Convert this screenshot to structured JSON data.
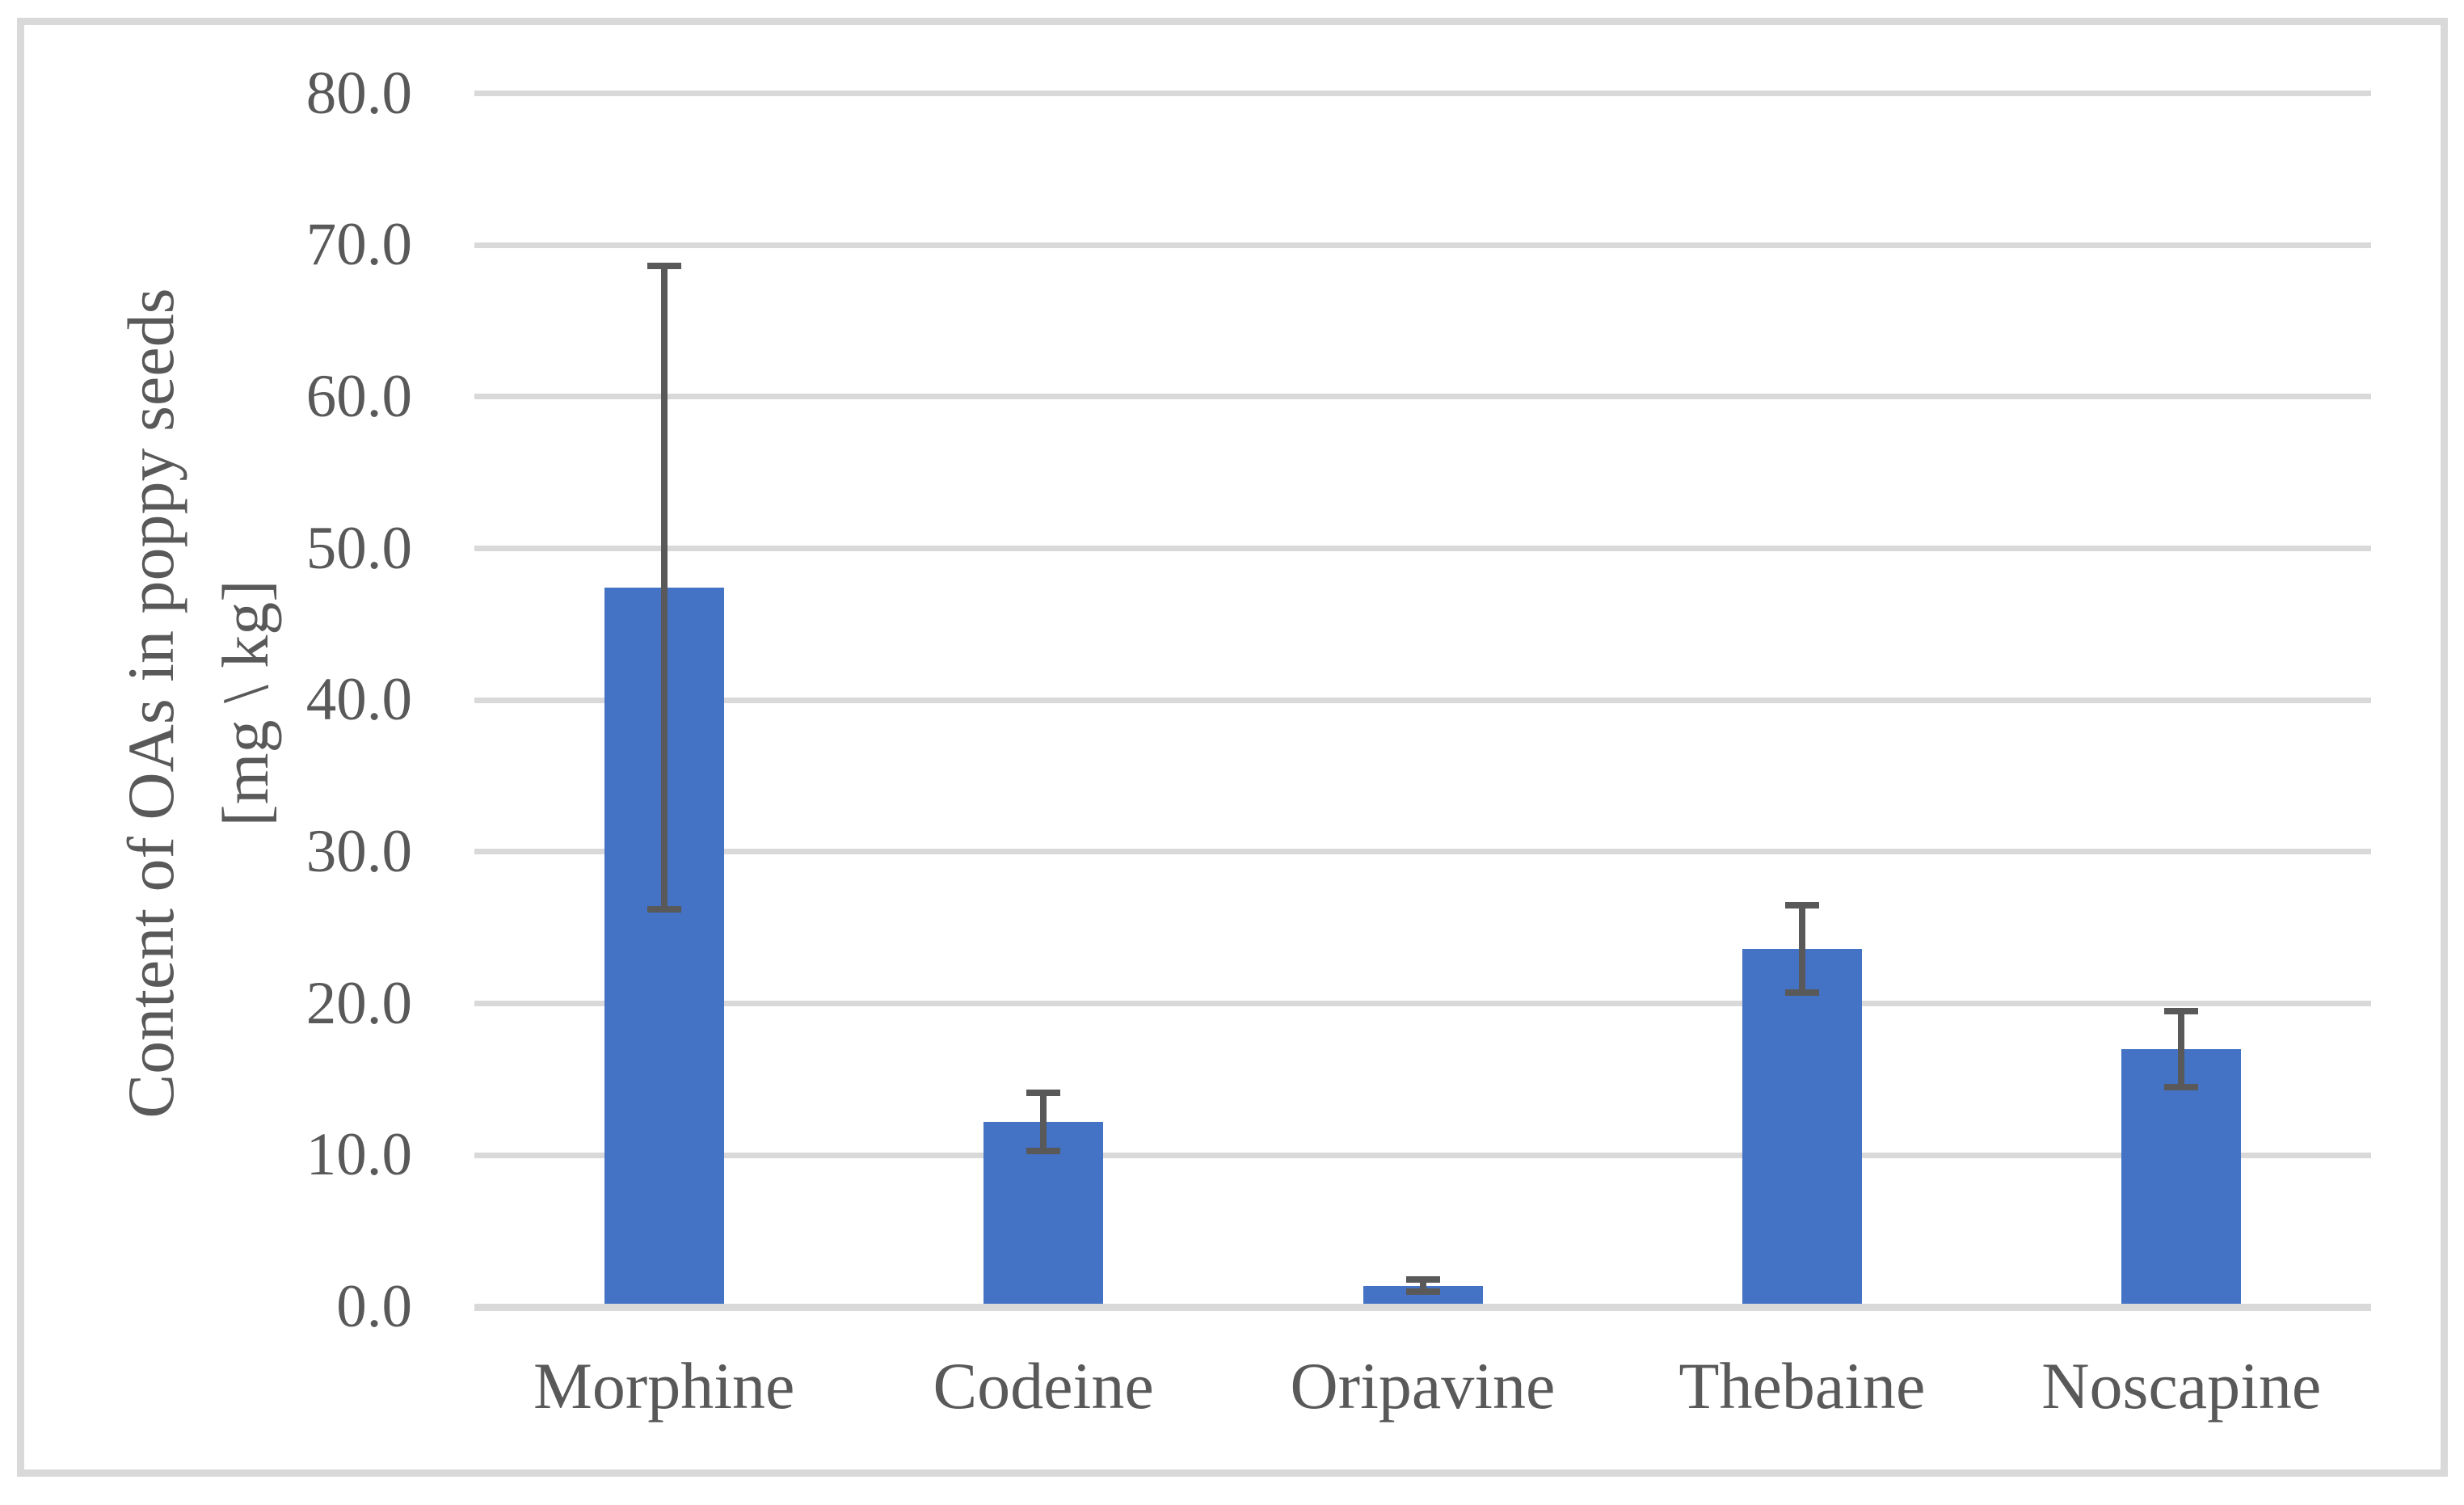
{
  "chart_data": {
    "type": "bar",
    "categories": [
      "Morphine",
      "Codeine",
      "Oripavine",
      "Thebaine",
      "Noscapine"
    ],
    "values": [
      47.4,
      12.2,
      1.4,
      23.6,
      17.0
    ],
    "errors": [
      21.2,
      1.9,
      0.4,
      2.9,
      2.5
    ],
    "ylabel": "Content of OAs in poppy seeds [mg \\ kg]",
    "ylabel_lines": [
      "Content of OAs in poppy seeds",
      "[mg \\ kg]"
    ],
    "ylim": [
      0,
      80
    ],
    "ytick_values": [
      0,
      10,
      20,
      30,
      40,
      50,
      60,
      70,
      80
    ],
    "ytick_labels": [
      "0.0",
      "10.0",
      "20.0",
      "30.0",
      "40.0",
      "50.0",
      "60.0",
      "70.0",
      "80.0"
    ],
    "grid": true,
    "legend": "none",
    "bar_color": "#4472C4",
    "error_bar_color": "#595959",
    "grid_color": "#D9D9D9",
    "axis_line_color": "#D9D9D9",
    "frame_color": "#D9D9D9",
    "text_color": "#595959"
  }
}
